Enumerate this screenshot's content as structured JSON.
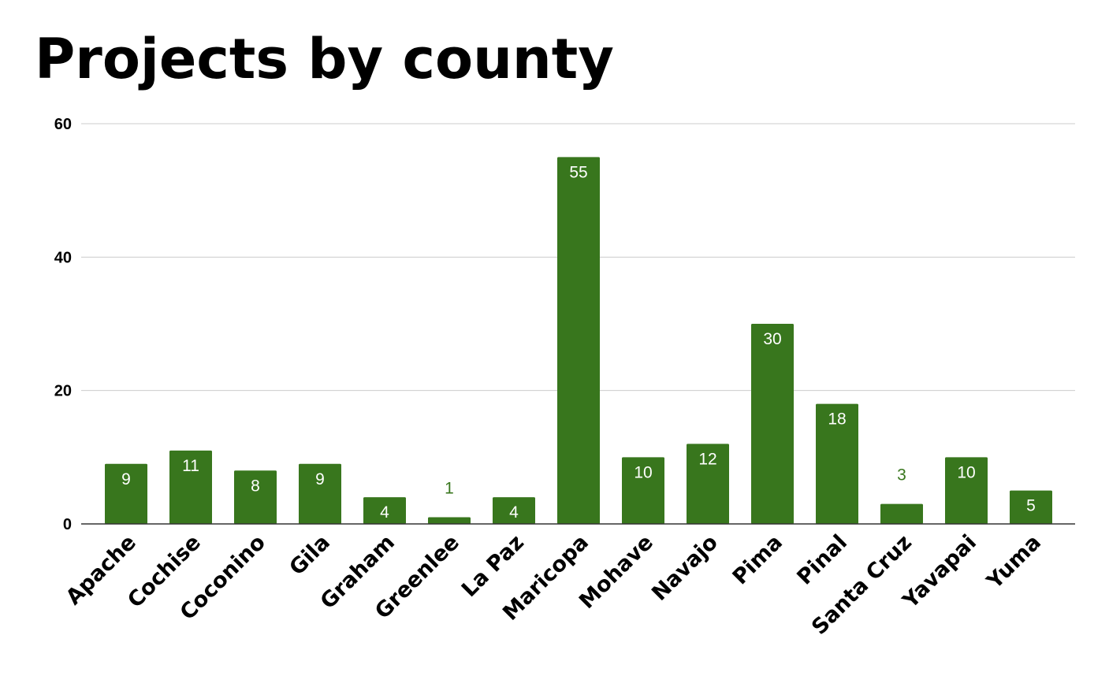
{
  "chart_data": {
    "type": "bar",
    "title": "Projects by county",
    "xlabel": "",
    "ylabel": "",
    "categories": [
      "Apache",
      "Cochise",
      "Coconino",
      "Gila",
      "Graham",
      "Greenlee",
      "La Paz",
      "Maricopa",
      "Mohave",
      "Navajo",
      "Pima",
      "Pinal",
      "Santa Cruz",
      "Yavapai",
      "Yuma"
    ],
    "values": [
      9,
      11,
      8,
      9,
      4,
      1,
      4,
      55,
      10,
      12,
      30,
      18,
      3,
      10,
      5
    ],
    "ylim": [
      0,
      60
    ],
    "yticks": [
      0,
      20,
      40,
      60
    ],
    "grid": true,
    "legend": "none",
    "bar_color": "#38761d",
    "inside_label_color": "#ffffff",
    "outside_label_color": "#38761d"
  }
}
